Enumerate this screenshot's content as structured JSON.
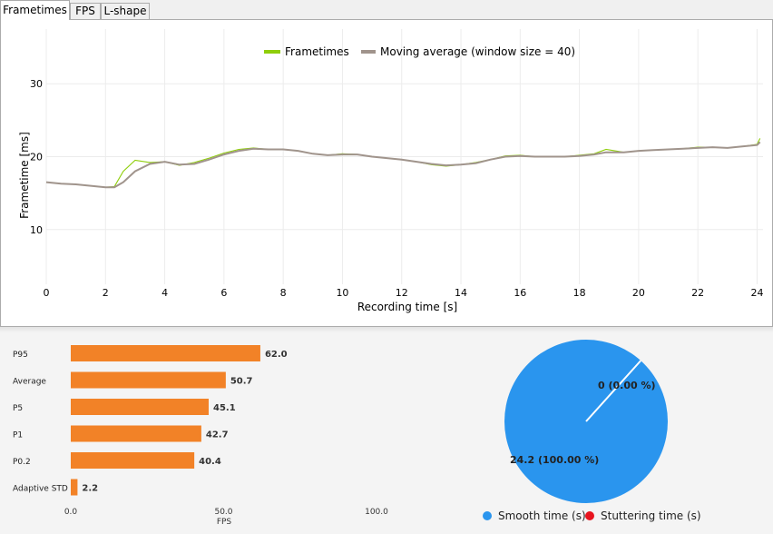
{
  "tabs": [
    {
      "label": "Frametimes",
      "active": true
    },
    {
      "label": "FPS",
      "active": false
    },
    {
      "label": "L-shape",
      "active": false
    }
  ],
  "colors": {
    "frametimes": "#8fce0a",
    "moving_average": "#a0948c",
    "bar": "#f28227",
    "smooth": "#2a95ee",
    "stutter": "#e8141e"
  },
  "chart_data": [
    {
      "type": "line",
      "xlabel": "Recording time [s]",
      "ylabel": "Frametime [ms]",
      "xlim": [
        0,
        24.2
      ],
      "ylim": [
        2.5,
        37.5
      ],
      "xticks": [
        0,
        2,
        4,
        6,
        8,
        10,
        12,
        14,
        16,
        18,
        20,
        22,
        24
      ],
      "yticks": [
        10,
        20,
        30
      ],
      "grid": true,
      "legend_position": "top-center",
      "series": [
        {
          "name": "Frametimes",
          "x": [
            0,
            0.5,
            1,
            1.5,
            2,
            2.3,
            2.6,
            3,
            3.5,
            4,
            4.5,
            5,
            5.5,
            6,
            6.5,
            7,
            7.5,
            8,
            8.5,
            9,
            9.5,
            10,
            10.5,
            11,
            11.5,
            12,
            12.5,
            13,
            13.5,
            14,
            14.5,
            15,
            15.5,
            16,
            16.5,
            17,
            17.5,
            18,
            18.5,
            18.9,
            19.5,
            20,
            20.5,
            21,
            21.5,
            22,
            22.5,
            23,
            23.5,
            24,
            24.1
          ],
          "y": [
            16.5,
            16.3,
            16.2,
            16.0,
            15.8,
            15.9,
            18.0,
            19.5,
            19.2,
            19.3,
            18.8,
            19.2,
            19.8,
            20.5,
            21.0,
            21.2,
            21.0,
            21.0,
            20.8,
            20.4,
            20.2,
            20.4,
            20.3,
            20.0,
            19.8,
            19.6,
            19.3,
            18.9,
            18.7,
            18.9,
            19.2,
            19.6,
            20.1,
            20.2,
            20.0,
            20.0,
            20.0,
            20.2,
            20.4,
            21.0,
            20.6,
            20.8,
            20.9,
            21.0,
            21.1,
            21.3,
            21.3,
            21.2,
            21.4,
            21.7,
            22.5
          ]
        },
        {
          "name": "Moving average (window size = 40)",
          "x": [
            0,
            0.5,
            1,
            1.5,
            2,
            2.3,
            2.6,
            3,
            3.5,
            4,
            4.5,
            5,
            5.5,
            6,
            6.5,
            7,
            7.5,
            8,
            8.5,
            9,
            9.5,
            10,
            10.5,
            11,
            11.5,
            12,
            12.5,
            13,
            13.5,
            14,
            14.5,
            15,
            15.5,
            16,
            16.5,
            17,
            17.5,
            18,
            18.5,
            18.9,
            19.5,
            20,
            20.5,
            21,
            21.5,
            22,
            22.5,
            23,
            23.5,
            24,
            24.1
          ],
          "y": [
            16.5,
            16.3,
            16.2,
            16.0,
            15.8,
            15.8,
            16.5,
            18.0,
            19.0,
            19.3,
            18.9,
            19.0,
            19.6,
            20.3,
            20.8,
            21.1,
            21.0,
            21.0,
            20.8,
            20.4,
            20.2,
            20.3,
            20.3,
            20.0,
            19.8,
            19.6,
            19.3,
            19.0,
            18.8,
            18.9,
            19.1,
            19.6,
            20.0,
            20.1,
            20.0,
            20.0,
            20.0,
            20.1,
            20.3,
            20.6,
            20.6,
            20.8,
            20.9,
            21.0,
            21.1,
            21.2,
            21.3,
            21.2,
            21.4,
            21.6,
            22.0
          ]
        }
      ]
    },
    {
      "type": "bar",
      "orientation": "horizontal",
      "xlabel": "FPS",
      "xlim": [
        0,
        100
      ],
      "xticks": [
        "0.0",
        "50.0",
        "100.0"
      ],
      "categories": [
        "P95",
        "Average",
        "P5",
        "P1",
        "P0.2",
        "Adaptive STD"
      ],
      "values": [
        62.0,
        50.7,
        45.1,
        42.7,
        40.4,
        2.2
      ],
      "labels": [
        "62.0",
        "50.7",
        "45.1",
        "42.7",
        "40.4",
        "2.2"
      ]
    },
    {
      "type": "pie",
      "slices": [
        {
          "name": "Smooth time (s)",
          "value": 24.2,
          "label": "24.2 (100.00 %)"
        },
        {
          "name": "Stuttering time (s)",
          "value": 0,
          "label": "0 (0.00 %)"
        }
      ],
      "legend_position": "bottom"
    }
  ]
}
